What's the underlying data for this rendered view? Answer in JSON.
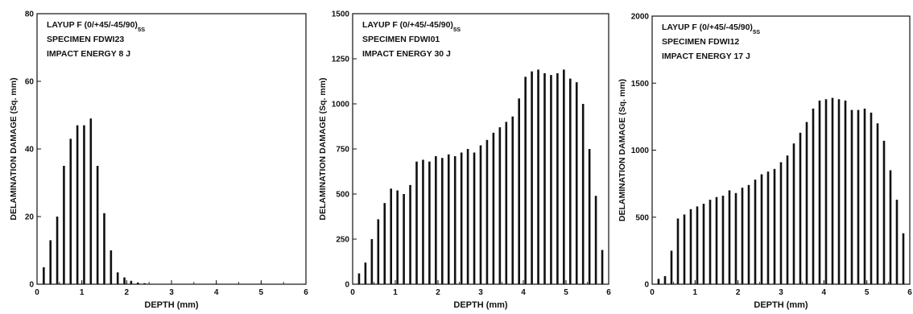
{
  "chart_data": [
    {
      "type": "bar",
      "annotation": {
        "layup_prefix": "LAYUP F (0/+45/-45/90)",
        "layup_subscript": "5S",
        "specimen": "SPECIMEN FDWI23",
        "impact_energy": "IMPACT ENERGY 8 J"
      },
      "xlabel": "DEPTH (mm)",
      "ylabel": "DELAMINATION DAMAGE (Sq. mm)",
      "xlim": [
        0,
        6
      ],
      "ylim": [
        0,
        80
      ],
      "xticks": [
        0,
        1,
        2,
        3,
        4,
        5,
        6
      ],
      "yticks": [
        0,
        20,
        40,
        60,
        80
      ],
      "grid": false,
      "x": [
        0.15,
        0.3,
        0.45,
        0.6,
        0.75,
        0.9,
        1.05,
        1.2,
        1.35,
        1.5,
        1.65,
        1.8,
        1.95,
        2.1,
        2.25,
        2.4
      ],
      "values": [
        5,
        13,
        20,
        35,
        43,
        47,
        47,
        49,
        35,
        21,
        10,
        3.5,
        2,
        1,
        0.5,
        0.3
      ]
    },
    {
      "type": "bar",
      "annotation": {
        "layup_prefix": "LAYUP F (0/+45/-45/90)",
        "layup_subscript": "5S",
        "specimen": "SPECIMEN FDWI01",
        "impact_energy": "IMPACT ENERGY 30 J"
      },
      "xlabel": "DEPTH (mm)",
      "ylabel": "DELAMINATION DAMAGE (Sq. mm)",
      "xlim": [
        0,
        6
      ],
      "ylim": [
        0,
        1500
      ],
      "xticks": [
        0,
        1,
        2,
        3,
        4,
        5,
        6
      ],
      "yticks": [
        0,
        250,
        500,
        750,
        1000,
        1250,
        1500
      ],
      "grid": false,
      "x": [
        0.15,
        0.3,
        0.45,
        0.6,
        0.75,
        0.9,
        1.05,
        1.2,
        1.35,
        1.5,
        1.65,
        1.8,
        1.95,
        2.1,
        2.25,
        2.4,
        2.55,
        2.7,
        2.85,
        3.0,
        3.15,
        3.3,
        3.45,
        3.6,
        3.75,
        3.9,
        4.05,
        4.2,
        4.35,
        4.5,
        4.65,
        4.8,
        4.95,
        5.1,
        5.25,
        5.4,
        5.55,
        5.7,
        5.85
      ],
      "values": [
        60,
        120,
        250,
        360,
        450,
        530,
        520,
        500,
        550,
        680,
        690,
        680,
        710,
        700,
        720,
        710,
        730,
        750,
        730,
        770,
        800,
        840,
        870,
        900,
        930,
        1030,
        1150,
        1180,
        1190,
        1170,
        1160,
        1170,
        1190,
        1140,
        1120,
        1000,
        750,
        490,
        190
      ]
    },
    {
      "type": "bar",
      "annotation": {
        "layup_prefix": "LAYUP F (0/+45/-45/90)",
        "layup_subscript": "5S",
        "specimen": "SPECIMEN FDWI12",
        "impact_energy": "IMPACT ENERGY 17 J"
      },
      "xlabel": "DEPTH (mm)",
      "ylabel": "DELAMINATION DAMAGE (Sq. mm)",
      "xlim": [
        0,
        6
      ],
      "ylim": [
        0,
        2000
      ],
      "xticks": [
        0,
        1,
        2,
        3,
        4,
        5,
        6
      ],
      "yticks": [
        0,
        500,
        1000,
        1500,
        2000
      ],
      "grid": false,
      "x": [
        0.15,
        0.3,
        0.45,
        0.6,
        0.75,
        0.9,
        1.05,
        1.2,
        1.35,
        1.5,
        1.65,
        1.8,
        1.95,
        2.1,
        2.25,
        2.4,
        2.55,
        2.7,
        2.85,
        3.0,
        3.15,
        3.3,
        3.45,
        3.6,
        3.75,
        3.9,
        4.05,
        4.2,
        4.35,
        4.5,
        4.65,
        4.8,
        4.95,
        5.1,
        5.25,
        5.4,
        5.55,
        5.7,
        5.85
      ],
      "values": [
        40,
        60,
        250,
        490,
        520,
        560,
        580,
        600,
        630,
        650,
        660,
        700,
        680,
        720,
        740,
        780,
        820,
        840,
        860,
        910,
        960,
        1050,
        1130,
        1210,
        1310,
        1370,
        1380,
        1390,
        1380,
        1370,
        1300,
        1300,
        1310,
        1280,
        1200,
        1070,
        850,
        630,
        380
      ]
    }
  ]
}
